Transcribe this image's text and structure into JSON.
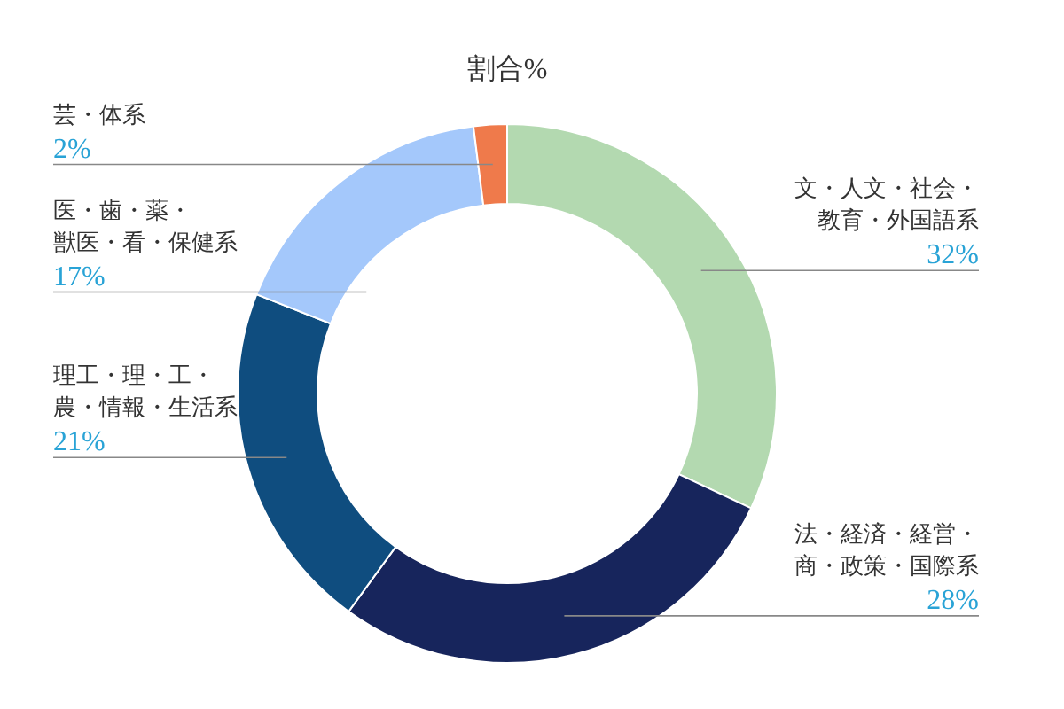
{
  "chart_data": {
    "type": "donut",
    "title": "割合%",
    "categories": [
      "文・人文・社会・教育・外国語系",
      "法・経済・経営・商・政策・国際系",
      "理工・理・工・農・情報・生活系",
      "医・歯・薬・獣医・看・保健系",
      "芸・体系"
    ],
    "values": [
      32,
      28,
      21,
      17,
      2
    ],
    "colors": [
      "#b3d9b0",
      "#17255c",
      "#0f4d7f",
      "#a4c8fb",
      "#ef7a4b"
    ],
    "value_labels": [
      "32%",
      "28%",
      "21%",
      "17%",
      "2%"
    ]
  }
}
